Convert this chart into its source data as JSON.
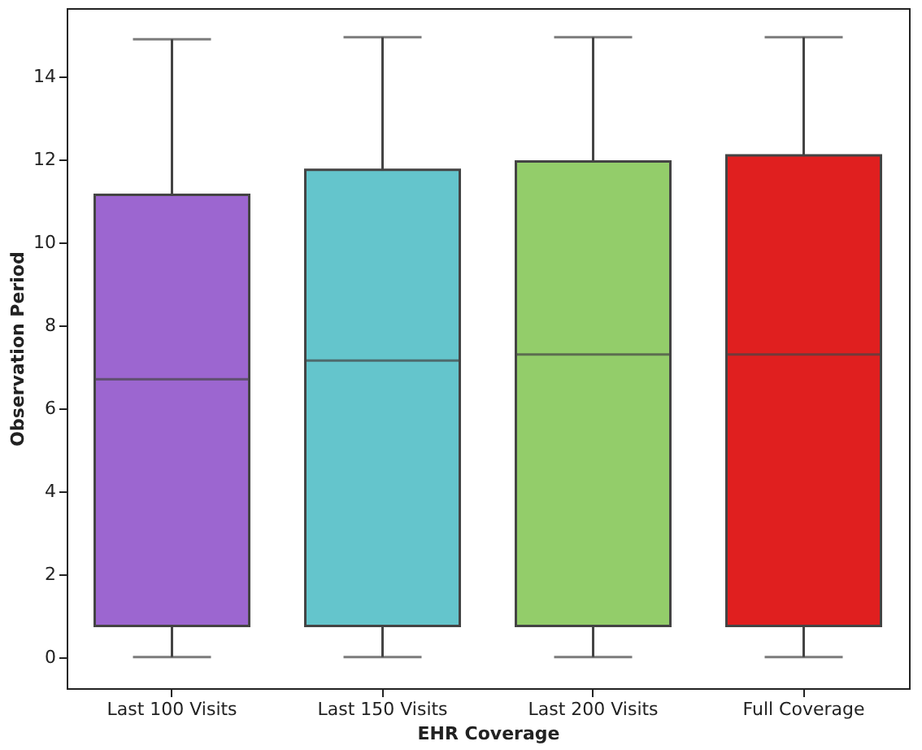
{
  "chart_data": {
    "type": "box",
    "xlabel": "EHR Coverage",
    "ylabel": "Observation Period",
    "categories": [
      "Last 100 Visits",
      "Last 150 Visits",
      "Last 200 Visits",
      "Full Coverage"
    ],
    "colors": [
      "#9c66d0",
      "#64c5cc",
      "#93cd6a",
      "#e01f1f"
    ],
    "boxes": [
      {
        "low": 0,
        "q1": 0.75,
        "median": 6.7,
        "q3": 11.15,
        "high": 14.9
      },
      {
        "low": 0,
        "q1": 0.75,
        "median": 7.15,
        "q3": 11.75,
        "high": 14.95
      },
      {
        "low": 0,
        "q1": 0.75,
        "median": 7.3,
        "q3": 11.95,
        "high": 14.95
      },
      {
        "low": 0,
        "q1": 0.75,
        "median": 7.3,
        "q3": 12.1,
        "high": 14.95
      }
    ],
    "ylim": [
      -0.75,
      15.65
    ],
    "yticks": [
      0,
      2,
      4,
      6,
      8,
      10,
      12,
      14
    ],
    "grid": false
  }
}
